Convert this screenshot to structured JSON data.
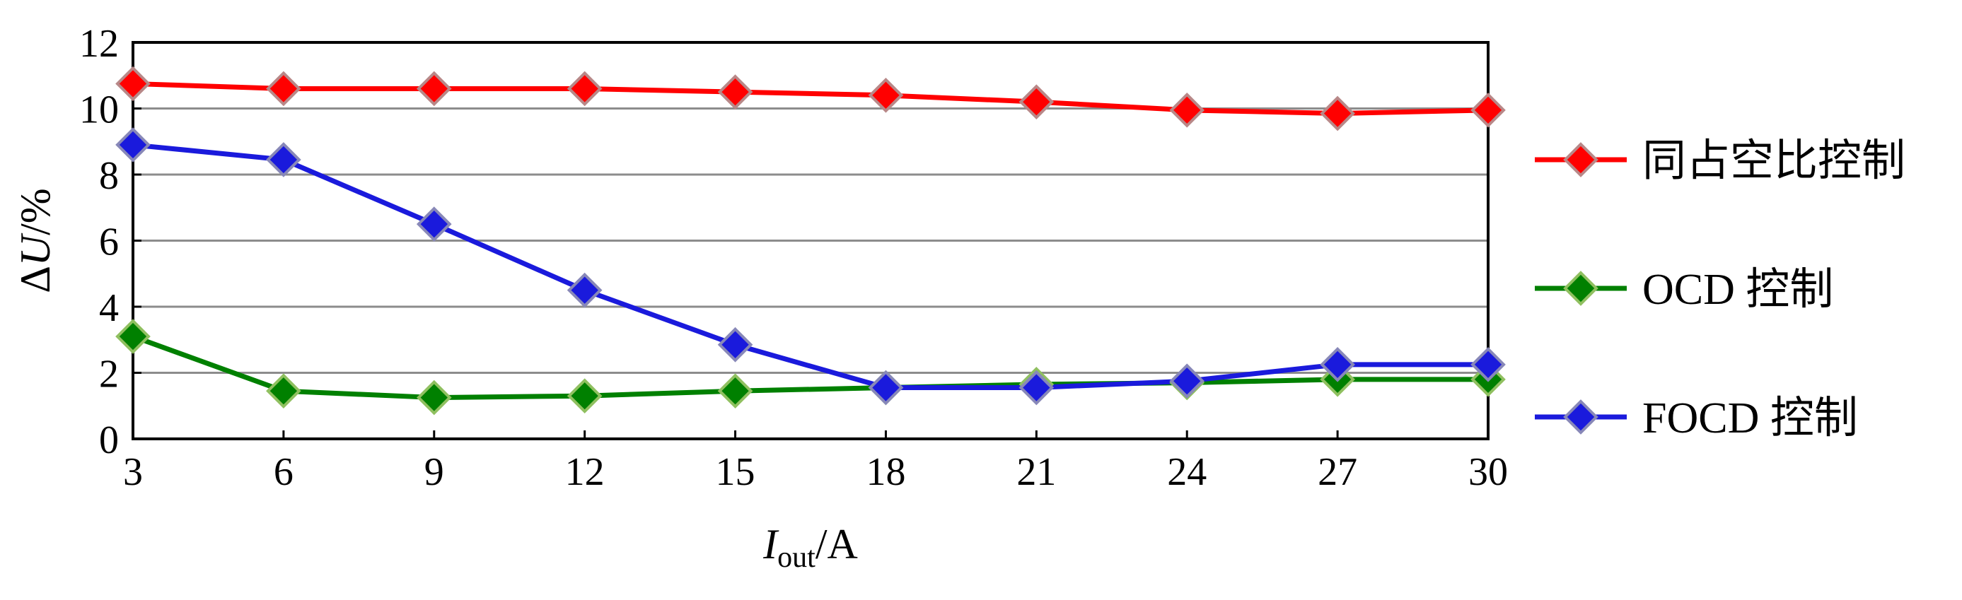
{
  "chart_data": {
    "type": "line",
    "x": [
      3,
      6,
      9,
      12,
      15,
      18,
      21,
      24,
      27,
      30
    ],
    "xlim": [
      3,
      30
    ],
    "ylim": [
      0,
      12
    ],
    "xticks": [
      3,
      6,
      9,
      12,
      15,
      18,
      21,
      24,
      27,
      30
    ],
    "yticks": [
      0,
      2,
      4,
      6,
      8,
      10,
      12
    ],
    "ylabel": {
      "prefix": "Δ",
      "var": "U",
      "suffix": "/%"
    },
    "xlabel": {
      "var": "I",
      "sub": "out",
      "suffix": "/A"
    },
    "grid": "horizontal",
    "legend_position": "right",
    "series": [
      {
        "name": "同占空比控制",
        "color": "#ff0000",
        "values": [
          10.75,
          10.6,
          10.6,
          10.6,
          10.5,
          10.4,
          10.2,
          9.95,
          9.85,
          9.95
        ]
      },
      {
        "name": "OCD 控制",
        "color": "#008000",
        "values": [
          3.1,
          1.45,
          1.25,
          1.3,
          1.45,
          1.55,
          1.65,
          1.7,
          1.8,
          1.8
        ]
      },
      {
        "name": "FOCD 控制",
        "color": "#1a1adc",
        "values": [
          8.9,
          8.45,
          6.5,
          4.5,
          2.85,
          1.55,
          1.55,
          1.75,
          2.25,
          2.25
        ]
      }
    ]
  }
}
